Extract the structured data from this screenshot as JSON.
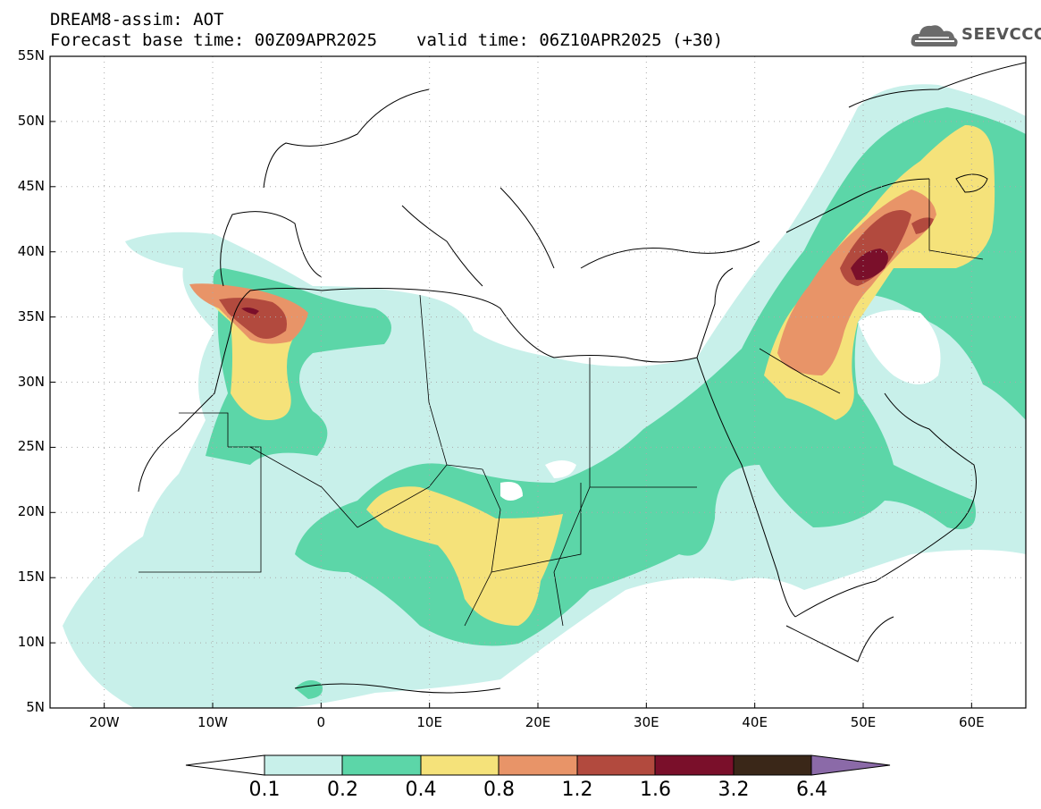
{
  "header": {
    "line1": "DREAM8-assim: AOT",
    "base_time": "Forecast base time: 00Z09APR2025",
    "valid_time": "valid time: 06Z10APR2025 (+30)"
  },
  "logo": {
    "text": "SEEVCCC",
    "icon": "cloud-logo-icon"
  },
  "map": {
    "lon_range": [
      -25,
      65
    ],
    "lat_range": [
      5,
      55
    ],
    "lat_labels": [
      "55N",
      "50N",
      "45N",
      "40N",
      "35N",
      "30N",
      "25N",
      "20N",
      "15N",
      "10N",
      "5N"
    ],
    "lon_labels": [
      "20W",
      "10W",
      "0",
      "10E",
      "20E",
      "30E",
      "40E",
      "50E",
      "60E"
    ],
    "gridlines": "dotted"
  },
  "colorbar": {
    "labels": [
      "0.1",
      "0.2",
      "0.4",
      "0.8",
      "1.2",
      "1.6",
      "3.2",
      "6.4"
    ],
    "colors": [
      "#c8f0ea",
      "#5cd6a8",
      "#f5e27a",
      "#e89468",
      "#b24a3e",
      "#7a0f2a",
      "#3a2718",
      "#8b6aa8"
    ]
  },
  "legend_colors": {
    "c1": "#c8f0ea",
    "c2": "#5cd6a8",
    "c3": "#f5e27a",
    "c4": "#e89468",
    "c5": "#b24a3e",
    "c6": "#7a0f2a"
  }
}
